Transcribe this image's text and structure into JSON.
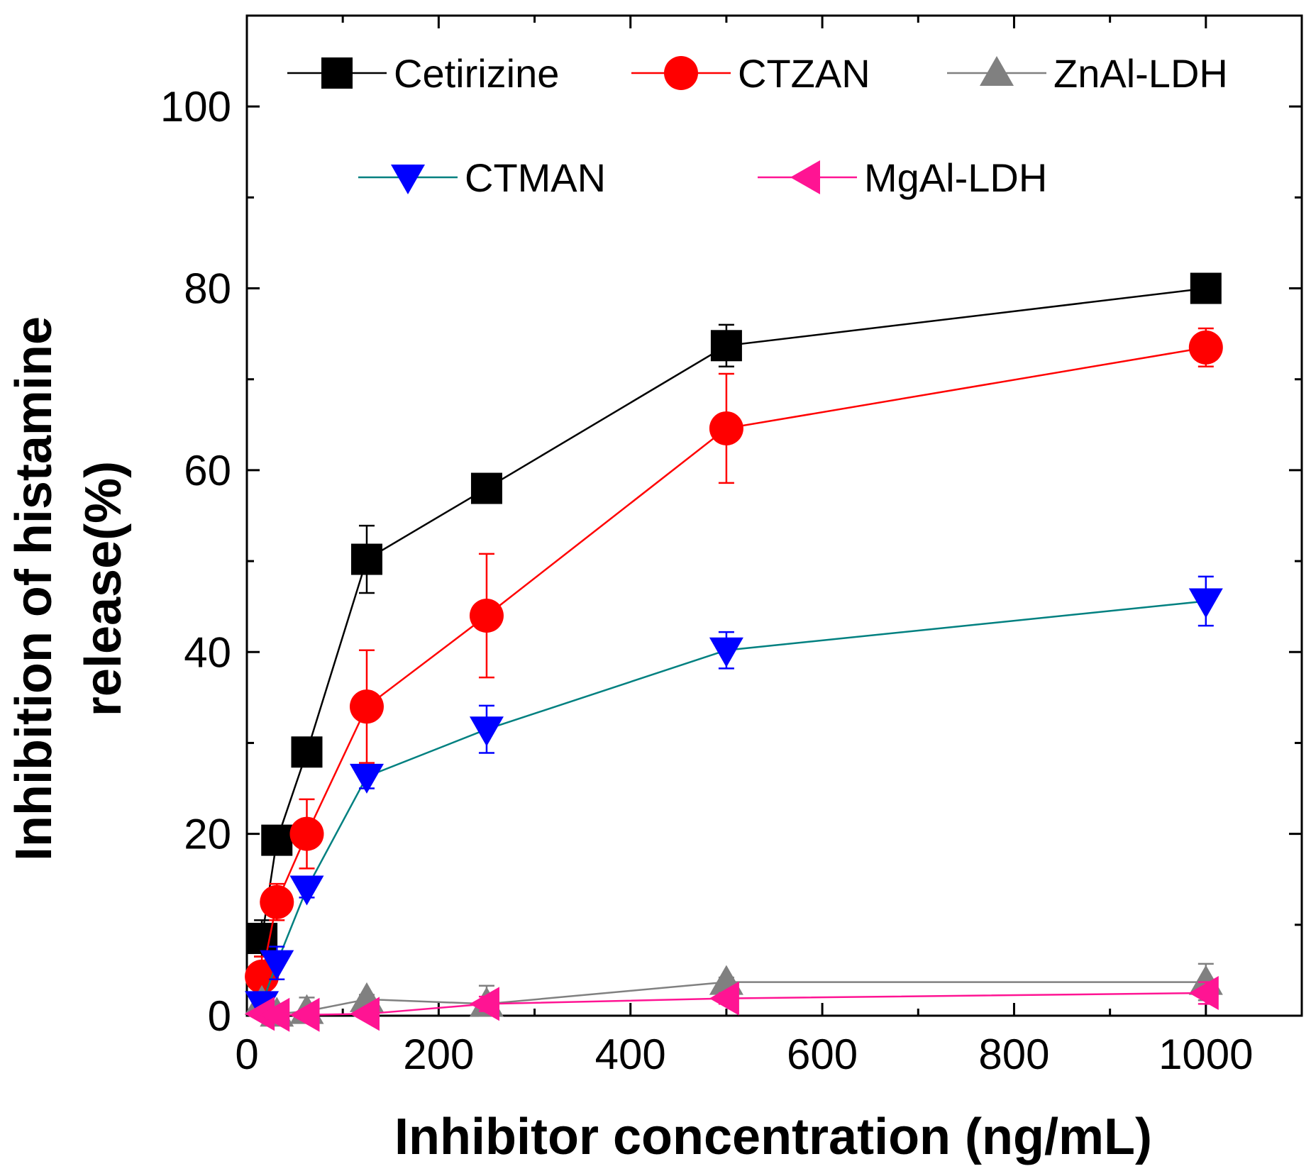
{
  "chart_data": {
    "type": "line",
    "xlabel": "Inhibitor concentration (ng/mL)",
    "ylabel_lines": [
      "Inhibition of histamine",
      "release(%)"
    ],
    "xlim": [
      0,
      1100
    ],
    "ylim": [
      0,
      110
    ],
    "x_ticks": [
      0,
      200,
      400,
      600,
      800,
      1000
    ],
    "y_ticks": [
      0,
      20,
      40,
      60,
      80,
      100
    ],
    "x_minor_step": 100,
    "y_minor_step": 10,
    "x": [
      15.6,
      31.25,
      62.5,
      125,
      250,
      500,
      1000
    ],
    "series": [
      {
        "name": "Cetirizine",
        "color": "#000000",
        "marker": "square",
        "values": [
          8.5,
          19.3,
          29.0,
          50.2,
          58.0,
          73.7,
          80.0
        ],
        "errors": [
          2.0,
          1.0,
          1.0,
          3.7,
          1.0,
          2.3,
          0.5
        ]
      },
      {
        "name": "CTZAN",
        "color": "#ff0000",
        "marker": "circle",
        "values": [
          4.3,
          12.5,
          20.0,
          34.0,
          44.0,
          64.6,
          73.5
        ],
        "errors": [
          2.2,
          2.0,
          3.8,
          6.2,
          6.8,
          6.0,
          2.1
        ]
      },
      {
        "name": "ZnAl-LDH",
        "color": "#808080",
        "marker": "triangle-up",
        "values": [
          1.5,
          0.2,
          0.5,
          1.8,
          1.3,
          3.7,
          3.7
        ],
        "errors": [
          0.8,
          0.5,
          1.5,
          0.5,
          2.0,
          0.5,
          2.0
        ]
      },
      {
        "name": "CTMAN",
        "color": "#0000ff",
        "line_color": "#008080",
        "marker": "triangle-down",
        "values": [
          1.3,
          5.8,
          14.0,
          26.3,
          31.5,
          40.2,
          45.6
        ],
        "errors": [
          0.8,
          1.8,
          1.0,
          1.3,
          2.6,
          2.0,
          2.7
        ]
      },
      {
        "name": "MgAl-LDH",
        "color": "#ff1493",
        "marker": "triangle-left",
        "values": [
          0.2,
          0.1,
          0.1,
          0.2,
          1.3,
          1.9,
          2.5
        ],
        "errors": [
          0.3,
          0.3,
          0.2,
          0.2,
          0.8,
          0.6,
          1.2
        ]
      }
    ]
  }
}
